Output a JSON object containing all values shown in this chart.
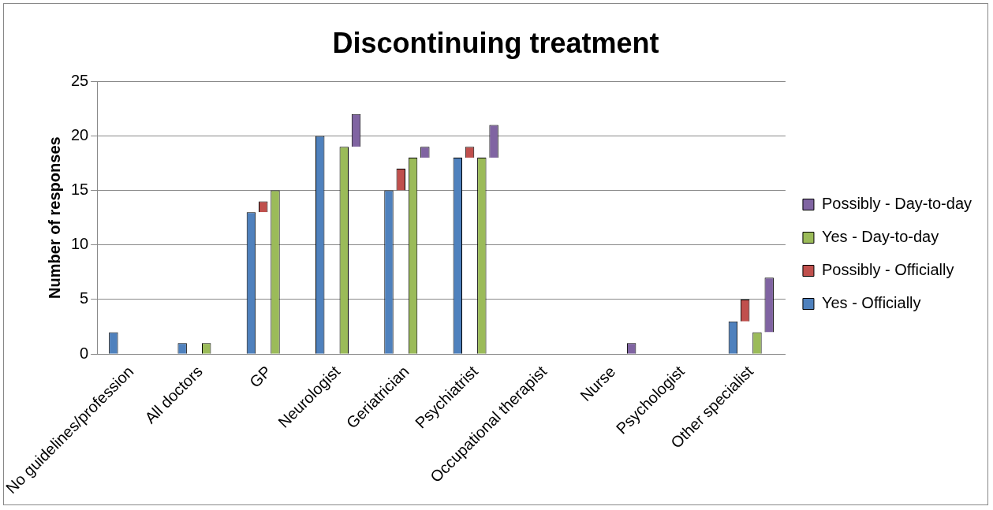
{
  "chart_data": {
    "type": "bar",
    "title": "Discontinuing treatment",
    "ylabel": "Number of responses",
    "categories": [
      "No guidelines/profession",
      "All doctors",
      "GP",
      "Neurologist",
      "Geriatrician",
      "Psychiatrist",
      "Occupational therapist",
      "Nurse",
      "Psychologist",
      "Other specialist"
    ],
    "series": [
      {
        "name": "Yes - Officially",
        "color": "#4f81bd",
        "values": [
          2,
          1,
          13,
          20,
          15,
          18,
          null,
          null,
          null,
          3
        ]
      },
      {
        "name": "Possibly - Officially",
        "color": "#c0504d",
        "base": [
          null,
          null,
          13,
          null,
          15,
          18,
          null,
          null,
          null,
          3
        ],
        "values": [
          null,
          null,
          1,
          null,
          2,
          1,
          null,
          null,
          null,
          2
        ]
      },
      {
        "name": "Yes - Day-to-day",
        "color": "#9bbb59",
        "values": [
          null,
          1,
          15,
          19,
          18,
          18,
          null,
          null,
          null,
          2
        ]
      },
      {
        "name": "Possibly - Day-to-day",
        "color": "#8064a2",
        "base": [
          null,
          null,
          null,
          19,
          18,
          18,
          null,
          0,
          null,
          2
        ],
        "values": [
          null,
          null,
          null,
          3,
          1,
          3,
          null,
          1,
          null,
          5
        ]
      }
    ],
    "ylim": [
      0,
      25
    ],
    "yticks": [
      0,
      5,
      10,
      15,
      20,
      25
    ],
    "grid": "y",
    "legend": "right"
  }
}
